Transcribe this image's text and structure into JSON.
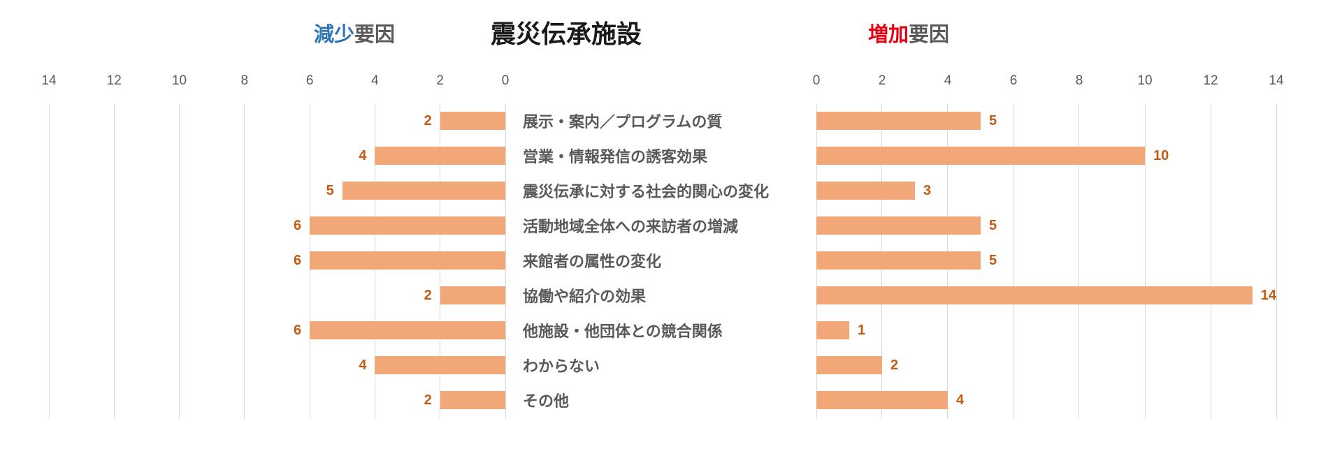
{
  "title": "震災伝承施設",
  "left_header": {
    "colored": "減少",
    "rest": "要因",
    "color": "#2e75b6"
  },
  "right_header": {
    "colored": "増加",
    "rest": "要因",
    "color": "#e60012"
  },
  "chart_data": {
    "type": "bar",
    "subtype": "diverging-horizontal-butterfly",
    "title": "震災伝承施設",
    "categories": [
      "展示・案内／プログラムの質",
      "営業・情報発信の誘客効果",
      "震災伝承に対する社会的関心の変化",
      "活動地域全体への来訪者の増減",
      "来館者の属性の変化",
      "協働や紹介の効果",
      "他施設・他団体との競合関係",
      "わからない",
      "その他"
    ],
    "series": [
      {
        "name": "減少要因",
        "side": "left",
        "values": [
          2,
          4,
          5,
          6,
          6,
          2,
          6,
          4,
          2
        ]
      },
      {
        "name": "増加要因",
        "side": "right",
        "values": [
          5,
          10,
          3,
          5,
          5,
          14,
          1,
          2,
          4
        ]
      }
    ],
    "axis": {
      "min": 0,
      "max": 14,
      "tick_step": 2,
      "left_ticks": [
        14,
        12,
        10,
        8,
        6,
        4,
        2,
        0
      ],
      "right_ticks": [
        0,
        2,
        4,
        6,
        8,
        10,
        12,
        14
      ],
      "grid": true
    },
    "colors": {
      "bar_fill": "#f2a778",
      "value_label": "#c55a11",
      "tick_label": "#595959",
      "category_label": "#595959",
      "gridline": "#d9d9d9"
    }
  }
}
